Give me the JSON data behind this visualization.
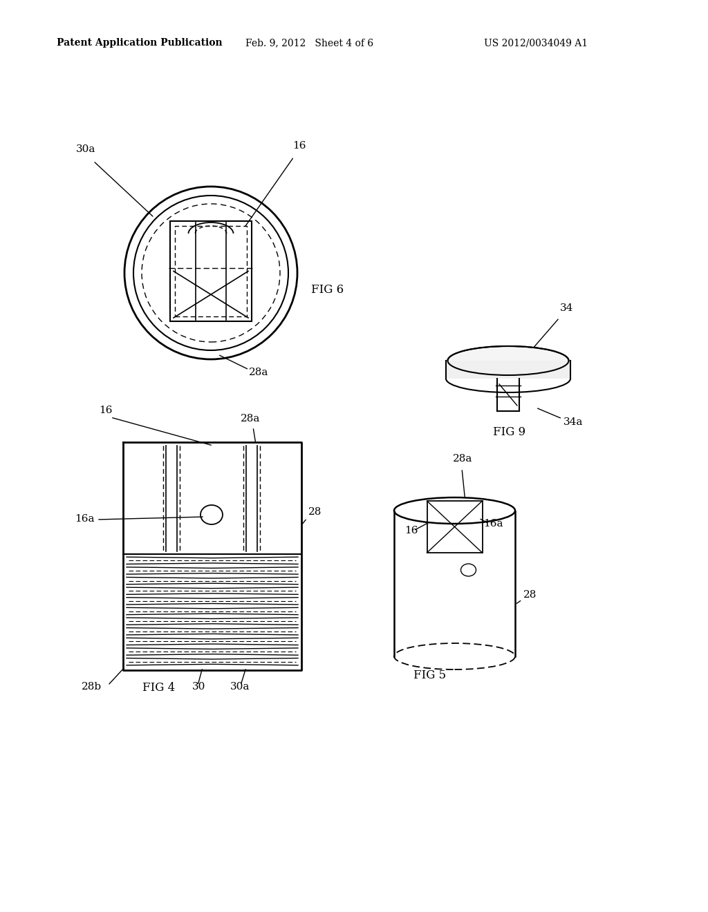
{
  "bg_color": "#ffffff",
  "text_color": "#000000",
  "line_color": "#000000",
  "header_left": "Patent Application Publication",
  "header_mid": "Feb. 9, 2012   Sheet 4 of 6",
  "header_right": "US 2012/0034049 A1",
  "fig6_label": "FIG 6",
  "fig4_label": "FIG 4",
  "fig5_label": "FIG 5",
  "fig9_label": "FIG 9"
}
